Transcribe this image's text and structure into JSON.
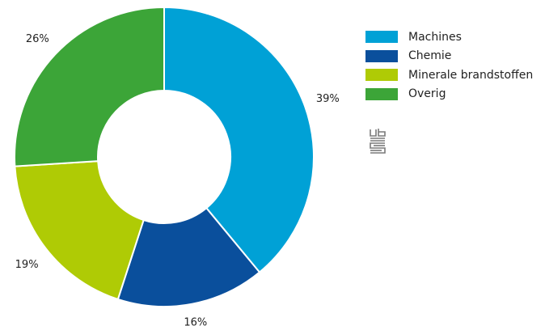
{
  "chart_data": {
    "type": "pie",
    "donut": true,
    "categories": [
      "Machines",
      "Chemie",
      "Minerale brandstoffen",
      "Overig"
    ],
    "values": [
      39,
      16,
      19,
      26
    ],
    "value_labels": [
      "39%",
      "16%",
      "19%",
      "26%"
    ],
    "colors": [
      "#00a1d6",
      "#0a4f9c",
      "#afcb05",
      "#3ca538"
    ],
    "start": "top, clockwise",
    "legend_position": "right"
  },
  "logo": {
    "icon": "cbs-logo-icon",
    "text": "cbs",
    "color": "#7a7a7a"
  }
}
